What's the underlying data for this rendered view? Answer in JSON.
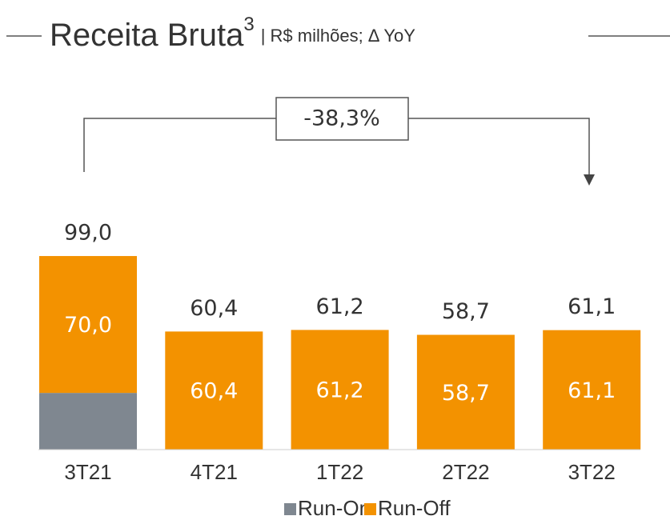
{
  "chart_data": {
    "type": "stacked_bar",
    "title": "Receita Bruta",
    "title_superscript": "3",
    "subtitle": "| R$ milhões; Δ YoY",
    "annotation": "-38,3%",
    "categories": [
      "3T21",
      "4T21",
      "1T22",
      "2T22",
      "3T22"
    ],
    "series": [
      {
        "name": "Run-On",
        "color": "#7f8790",
        "values": [
          29.0,
          0,
          0,
          0,
          0
        ]
      },
      {
        "name": "Run-Off",
        "color": "#f39200",
        "values": [
          70.0,
          60.4,
          61.2,
          58.7,
          61.1
        ],
        "value_labels": [
          "70,0",
          "60,4",
          "61,2",
          "58,7",
          "61,1"
        ]
      }
    ],
    "totals": [
      99.0,
      60.4,
      61.2,
      58.7,
      61.1
    ],
    "total_labels": [
      "99,0",
      "60,4",
      "61,2",
      "58,7",
      "61,1"
    ]
  }
}
